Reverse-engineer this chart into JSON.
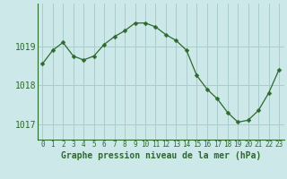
{
  "x": [
    0,
    1,
    2,
    3,
    4,
    5,
    6,
    7,
    8,
    9,
    10,
    11,
    12,
    13,
    14,
    15,
    16,
    17,
    18,
    19,
    20,
    21,
    22,
    23
  ],
  "y": [
    1018.55,
    1018.9,
    1019.1,
    1018.75,
    1018.65,
    1018.75,
    1019.05,
    1019.25,
    1019.4,
    1019.6,
    1019.6,
    1019.5,
    1019.3,
    1019.15,
    1018.9,
    1018.25,
    1017.9,
    1017.65,
    1017.3,
    1017.05,
    1017.1,
    1017.35,
    1017.8,
    1018.4
  ],
  "line_color": "#2d6a2d",
  "marker": "D",
  "marker_size": 2.5,
  "bg_color": "#cce8e8",
  "grid_color": "#aacccc",
  "axis_color": "#2d6a2d",
  "xlabel": "Graphe pression niveau de la mer (hPa)",
  "xlabel_fontsize": 7,
  "tick_fontsize": 7,
  "ytick_labels": [
    "1017",
    "1018",
    "1019"
  ],
  "ytick_values": [
    1017,
    1018,
    1019
  ],
  "ylim": [
    1016.6,
    1020.1
  ],
  "xlim": [
    -0.5,
    23.5
  ]
}
